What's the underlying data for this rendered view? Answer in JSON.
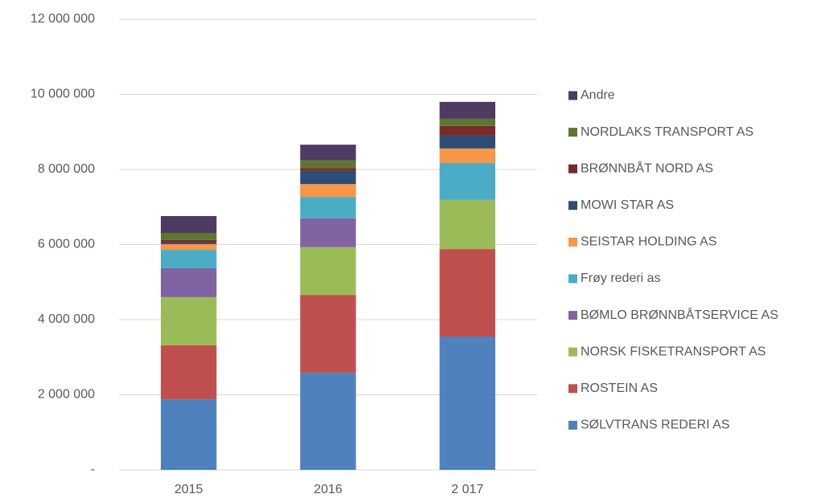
{
  "chart_data": {
    "type": "stacked_bar",
    "categories": [
      "2015",
      "2016",
      "2 017"
    ],
    "series": [
      {
        "name": "SØLVTRANS REDERI AS",
        "color": "#4f81bd",
        "values": [
          1880000,
          2590000,
          3550000
        ]
      },
      {
        "name": "ROSTEIN AS",
        "color": "#c0504d",
        "values": [
          1440000,
          2070000,
          2330000
        ]
      },
      {
        "name": "NORSK FISKETRANSPORT AS",
        "color": "#9bbb59",
        "values": [
          1280000,
          1270000,
          1310000
        ]
      },
      {
        "name": "BØMLO BRØNNBÅTSERVICE AS",
        "color": "#8064a2",
        "values": [
          770000,
          770000,
          0
        ]
      },
      {
        "name": "Frøy rederi as",
        "color": "#4bacc6",
        "values": [
          490000,
          570000,
          980000
        ]
      },
      {
        "name": "SEISTAR HOLDING AS",
        "color": "#f79646",
        "values": [
          150000,
          340000,
          390000
        ]
      },
      {
        "name": "MOWI STAR AS",
        "color": "#2c4d75",
        "values": [
          40000,
          350000,
          340000
        ]
      },
      {
        "name": "BRØNNBÅT NORD AS",
        "color": "#772c2a",
        "values": [
          70000,
          80000,
          260000
        ]
      },
      {
        "name": "NORDLAKS TRANSPORT AS",
        "color": "#5f7530",
        "values": [
          190000,
          200000,
          190000
        ]
      },
      {
        "name": "Andre",
        "color": "#4d3b62",
        "values": [
          450000,
          420000,
          450000
        ]
      }
    ],
    "ylim": [
      0,
      12000000
    ],
    "yticks": [
      {
        "value": 0,
        "label": "-"
      },
      {
        "value": 2000000,
        "label": "2 000 000"
      },
      {
        "value": 4000000,
        "label": "4 000 000"
      },
      {
        "value": 6000000,
        "label": "6 000 000"
      },
      {
        "value": 8000000,
        "label": "8 000 000"
      },
      {
        "value": 10000000,
        "label": "10 000 000"
      },
      {
        "value": 12000000,
        "label": "12 000 000"
      }
    ],
    "grid": true,
    "legend": "right"
  }
}
